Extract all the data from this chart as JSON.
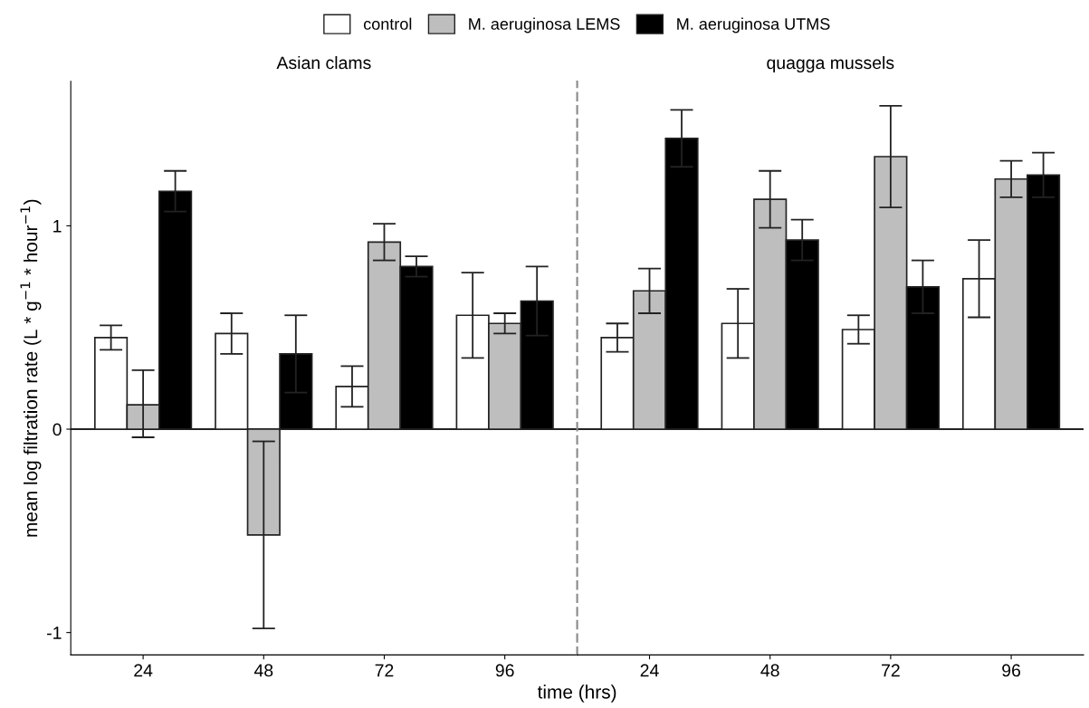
{
  "chart_data": [
    {
      "type": "bar",
      "title": "Asian clams",
      "xlabel": "time (hrs)",
      "ylabel": "mean log filtration rate (L * g$^{−1}$ * hour$^{−1}$)",
      "categories": [
        "24",
        "48",
        "72",
        "96"
      ],
      "ylim": [
        -1.11,
        1.71
      ],
      "yticks": [
        -1,
        0,
        1
      ],
      "legend": "top",
      "grid": false,
      "ref_lines": [
        {
          "axis": "y",
          "value": 0
        }
      ],
      "series": [
        {
          "name": "control",
          "color": "#ffffff",
          "values": [
            0.45,
            0.47,
            0.21,
            0.56
          ],
          "errors": [
            [
              0.39,
              0.51
            ],
            [
              0.37,
              0.57
            ],
            [
              0.11,
              0.31
            ],
            [
              0.35,
              0.77
            ]
          ]
        },
        {
          "name": "M. aeruginosa LEMS",
          "color": "#bebebe",
          "values": [
            0.12,
            -0.52,
            0.92,
            0.52
          ],
          "errors": [
            [
              -0.04,
              0.29
            ],
            [
              -0.98,
              -0.06
            ],
            [
              0.83,
              1.01
            ],
            [
              0.47,
              0.57
            ]
          ]
        },
        {
          "name": "M. aeruginosa UTMS",
          "color": "#000000",
          "values": [
            1.17,
            0.37,
            0.8,
            0.63
          ],
          "errors": [
            [
              1.07,
              1.27
            ],
            [
              0.18,
              0.56
            ],
            [
              0.75,
              0.85
            ],
            [
              0.46,
              0.8
            ]
          ]
        }
      ]
    },
    {
      "type": "bar",
      "title": "quagga mussels",
      "categories": [
        "24",
        "48",
        "72",
        "96"
      ],
      "ylim": [
        -1.11,
        1.71
      ],
      "tick_labels": "x",
      "grid": false,
      "ref_lines": [
        {
          "axis": "y",
          "value": 0
        }
      ],
      "series": [
        {
          "name": "control",
          "color": "#ffffff",
          "values": [
            0.45,
            0.52,
            0.49,
            0.74
          ],
          "errors": [
            [
              0.38,
              0.52
            ],
            [
              0.35,
              0.69
            ],
            [
              0.42,
              0.56
            ],
            [
              0.55,
              0.93
            ]
          ]
        },
        {
          "name": "M. aeruginosa LEMS",
          "color": "#bebebe",
          "values": [
            0.68,
            1.13,
            1.34,
            1.23
          ],
          "errors": [
            [
              0.57,
              0.79
            ],
            [
              0.99,
              1.27
            ],
            [
              1.09,
              1.59
            ],
            [
              1.14,
              1.32
            ]
          ]
        },
        {
          "name": "M. aeruginosa UTMS",
          "color": "#000000",
          "values": [
            1.43,
            0.93,
            0.7,
            1.25
          ],
          "errors": [
            [
              1.29,
              1.57
            ],
            [
              0.83,
              1.03
            ],
            [
              0.57,
              0.83
            ],
            [
              1.14,
              1.36
            ]
          ]
        }
      ]
    }
  ]
}
